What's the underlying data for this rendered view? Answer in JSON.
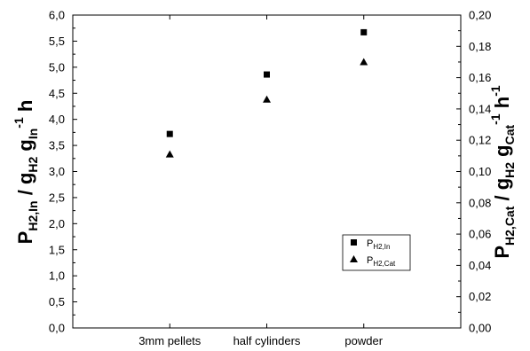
{
  "chart_data": {
    "type": "scatter",
    "categories": [
      "3mm pellets",
      "half cylinders",
      "powder"
    ],
    "series": [
      {
        "name": "P_H2,In",
        "name_main": "P",
        "name_sub": "H2,In",
        "marker": "square",
        "axis": "left",
        "values": [
          3.72,
          4.86,
          5.67
        ]
      },
      {
        "name": "P_H2,Cat",
        "name_main": "P",
        "name_sub": "H2,Cat",
        "marker": "triangle",
        "axis": "right",
        "values": [
          0.111,
          0.146,
          0.17
        ]
      }
    ],
    "ylabel_left": {
      "p1": "P",
      "s1": "H2,In",
      "p2": " / g",
      "s2": "H2",
      "p3": " g",
      "s3": "In",
      "p4": " h",
      "sup": "-1"
    },
    "ylabel_right": {
      "p1": "P",
      "s1": "H2,Cat",
      "p2": " / g",
      "s2": "H2",
      "p3": " g",
      "s3": "Cat",
      "sup": "-1",
      "p4": " h",
      "sup2": "-1"
    },
    "ylim_left": [
      0,
      6
    ],
    "ylim_right": [
      0,
      0.2
    ],
    "yticks_left": [
      "0,0",
      "0,5",
      "1,0",
      "1,5",
      "2,0",
      "2,5",
      "3,0",
      "3,5",
      "4,0",
      "4,5",
      "5,0",
      "5,5",
      "6,0"
    ],
    "yticks_right": [
      "0,00",
      "0,02",
      "0,04",
      "0,06",
      "0,08",
      "0,10",
      "0,12",
      "0,14",
      "0,16",
      "0,18",
      "0,20"
    ],
    "grid": false,
    "legend_position": "lower-right"
  }
}
